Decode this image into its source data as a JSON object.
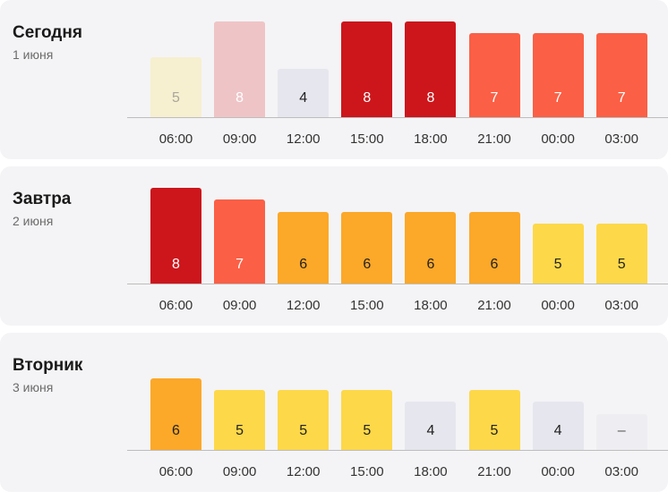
{
  "days": [
    {
      "title": "Сегодня",
      "date": "1 июня",
      "times": [
        "06:00",
        "09:00",
        "12:00",
        "15:00",
        "18:00",
        "21:00",
        "00:00",
        "03:00"
      ],
      "labels": [
        "5",
        "8",
        "4",
        "8",
        "8",
        "7",
        "7",
        "7"
      ],
      "values": [
        5,
        8,
        4,
        8,
        8,
        7,
        7,
        7
      ],
      "colors": [
        "#f6efd0",
        "#efc4c6",
        "#e6e6ee",
        "#cc161c",
        "#cc161c",
        "#fb5f45",
        "#fb5f45",
        "#fb5f45"
      ],
      "text_colors": [
        "#a9a69a",
        "#ffffff",
        "#222222",
        "#ffffff",
        "#ffffff",
        "#ffffff",
        "#ffffff",
        "#ffffff"
      ]
    },
    {
      "title": "Завтра",
      "date": "2 июня",
      "times": [
        "06:00",
        "09:00",
        "12:00",
        "15:00",
        "18:00",
        "21:00",
        "00:00",
        "03:00"
      ],
      "labels": [
        "8",
        "7",
        "6",
        "6",
        "6",
        "6",
        "5",
        "5"
      ],
      "values": [
        8,
        7,
        6,
        6,
        6,
        6,
        5,
        5
      ],
      "colors": [
        "#cc161c",
        "#fb5f45",
        "#fca828",
        "#fca828",
        "#fca828",
        "#fca828",
        "#fdd849",
        "#fdd849"
      ],
      "text_colors": [
        "#ffffff",
        "#ffffff",
        "#222222",
        "#222222",
        "#222222",
        "#222222",
        "#222222",
        "#222222"
      ]
    },
    {
      "title": "Вторник",
      "date": "3 июня",
      "times": [
        "06:00",
        "09:00",
        "12:00",
        "15:00",
        "18:00",
        "21:00",
        "00:00",
        "03:00"
      ],
      "labels": [
        "6",
        "5",
        "5",
        "5",
        "4",
        "5",
        "4",
        "–"
      ],
      "values": [
        6,
        5,
        5,
        5,
        4,
        5,
        4,
        3
      ],
      "colors": [
        "#fca828",
        "#fdd849",
        "#fdd849",
        "#fdd849",
        "#e6e6ee",
        "#fdd849",
        "#e6e6ee",
        "#eeeef2"
      ],
      "text_colors": [
        "#222222",
        "#222222",
        "#222222",
        "#222222",
        "#222222",
        "#222222",
        "#222222",
        "#555555"
      ]
    }
  ],
  "chart_data": [
    {
      "type": "bar",
      "title": "Сегодня",
      "subtitle": "1 июня",
      "categories": [
        "06:00",
        "09:00",
        "12:00",
        "15:00",
        "18:00",
        "21:00",
        "00:00",
        "03:00"
      ],
      "values": [
        5,
        8,
        4,
        8,
        8,
        7,
        7,
        7
      ]
    },
    {
      "type": "bar",
      "title": "Завтра",
      "subtitle": "2 июня",
      "categories": [
        "06:00",
        "09:00",
        "12:00",
        "15:00",
        "18:00",
        "21:00",
        "00:00",
        "03:00"
      ],
      "values": [
        8,
        7,
        6,
        6,
        6,
        6,
        5,
        5
      ]
    },
    {
      "type": "bar",
      "title": "Вторник",
      "subtitle": "3 июня",
      "categories": [
        "06:00",
        "09:00",
        "12:00",
        "15:00",
        "18:00",
        "21:00",
        "00:00",
        "03:00"
      ],
      "values": [
        6,
        5,
        5,
        5,
        4,
        5,
        4,
        null
      ]
    }
  ]
}
